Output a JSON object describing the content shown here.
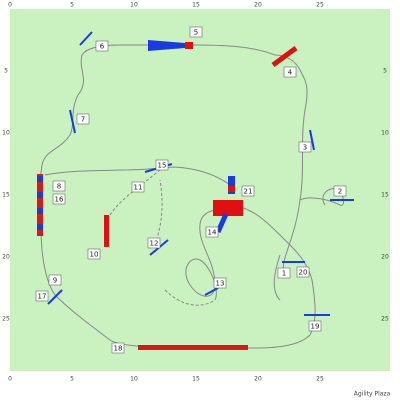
{
  "axis": {
    "top": [
      "0",
      "5",
      "10",
      "15",
      "20",
      "25"
    ],
    "bottom": [
      "0",
      "5",
      "10",
      "15",
      "20",
      "25"
    ],
    "left": [
      "5",
      "10",
      "15",
      "20",
      "25"
    ],
    "right": [
      "5",
      "10",
      "15",
      "20",
      "25"
    ]
  },
  "obstacles": [
    "1",
    "2",
    "3",
    "4",
    "5",
    "6",
    "7",
    "8",
    "9",
    "10",
    "11",
    "12",
    "13",
    "14",
    "15",
    "16",
    "17",
    "18",
    "19",
    "20",
    "21"
  ],
  "credit": "Agility Plaza"
}
